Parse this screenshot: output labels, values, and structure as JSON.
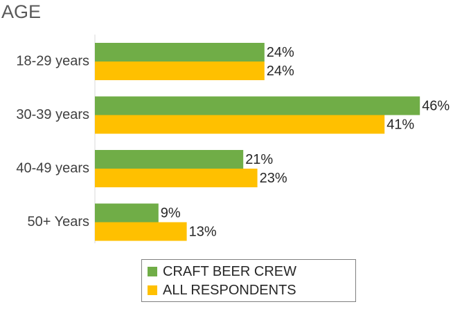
{
  "title": "AGE",
  "colors": {
    "craft": "#70AD47",
    "all": "#FFC000",
    "axis": "#D9D9D9"
  },
  "chart_data": {
    "type": "bar",
    "orientation": "horizontal",
    "title": "AGE",
    "categories": [
      "18-29 years",
      "30-39 years",
      "40-49 years",
      "50+ Years"
    ],
    "series": [
      {
        "name": "CRAFT BEER CREW",
        "values": [
          24,
          46,
          21,
          9
        ],
        "labels": [
          "24%",
          "46%",
          "21%",
          "9%"
        ]
      },
      {
        "name": "ALL RESPONDENTS",
        "values": [
          24,
          41,
          23,
          13
        ],
        "labels": [
          "24%",
          "41%",
          "23%",
          "13%"
        ]
      }
    ],
    "xlim": [
      0,
      50
    ],
    "unit": "%",
    "grid": false,
    "legend": "bottom"
  },
  "legend": {
    "items": [
      "CRAFT BEER CREW",
      "ALL RESPONDENTS"
    ]
  }
}
